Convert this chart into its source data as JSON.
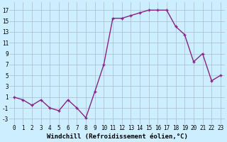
{
  "x": [
    0,
    1,
    2,
    3,
    4,
    5,
    6,
    7,
    8,
    9,
    10,
    11,
    12,
    13,
    14,
    15,
    16,
    17,
    18,
    19,
    20,
    21,
    22,
    23
  ],
  "y": [
    1,
    0.5,
    -0.5,
    0.5,
    -1,
    -1.5,
    0.5,
    -1,
    -2.8,
    2,
    7,
    15.5,
    15.5,
    16,
    16.5,
    17,
    17,
    17,
    14,
    12.5,
    7.5,
    9,
    4,
    5
  ],
  "line_color": "#882288",
  "marker_color": "#882288",
  "bg_color": "#cceeff",
  "grid_color": "#aabbcc",
  "xlabel": "Windchill (Refroidissement éolien,°C)",
  "xlabel_fontsize": 6.5,
  "xlim": [
    -0.5,
    23.5
  ],
  "ylim": [
    -4,
    18.5
  ],
  "yticks": [
    -3,
    -1,
    1,
    3,
    5,
    7,
    9,
    11,
    13,
    15,
    17
  ],
  "xticks": [
    0,
    1,
    2,
    3,
    4,
    5,
    6,
    7,
    8,
    9,
    10,
    11,
    12,
    13,
    14,
    15,
    16,
    17,
    18,
    19,
    20,
    21,
    22,
    23
  ],
  "tick_fontsize": 5.5,
  "line_width": 1.0,
  "marker_size": 2.5
}
